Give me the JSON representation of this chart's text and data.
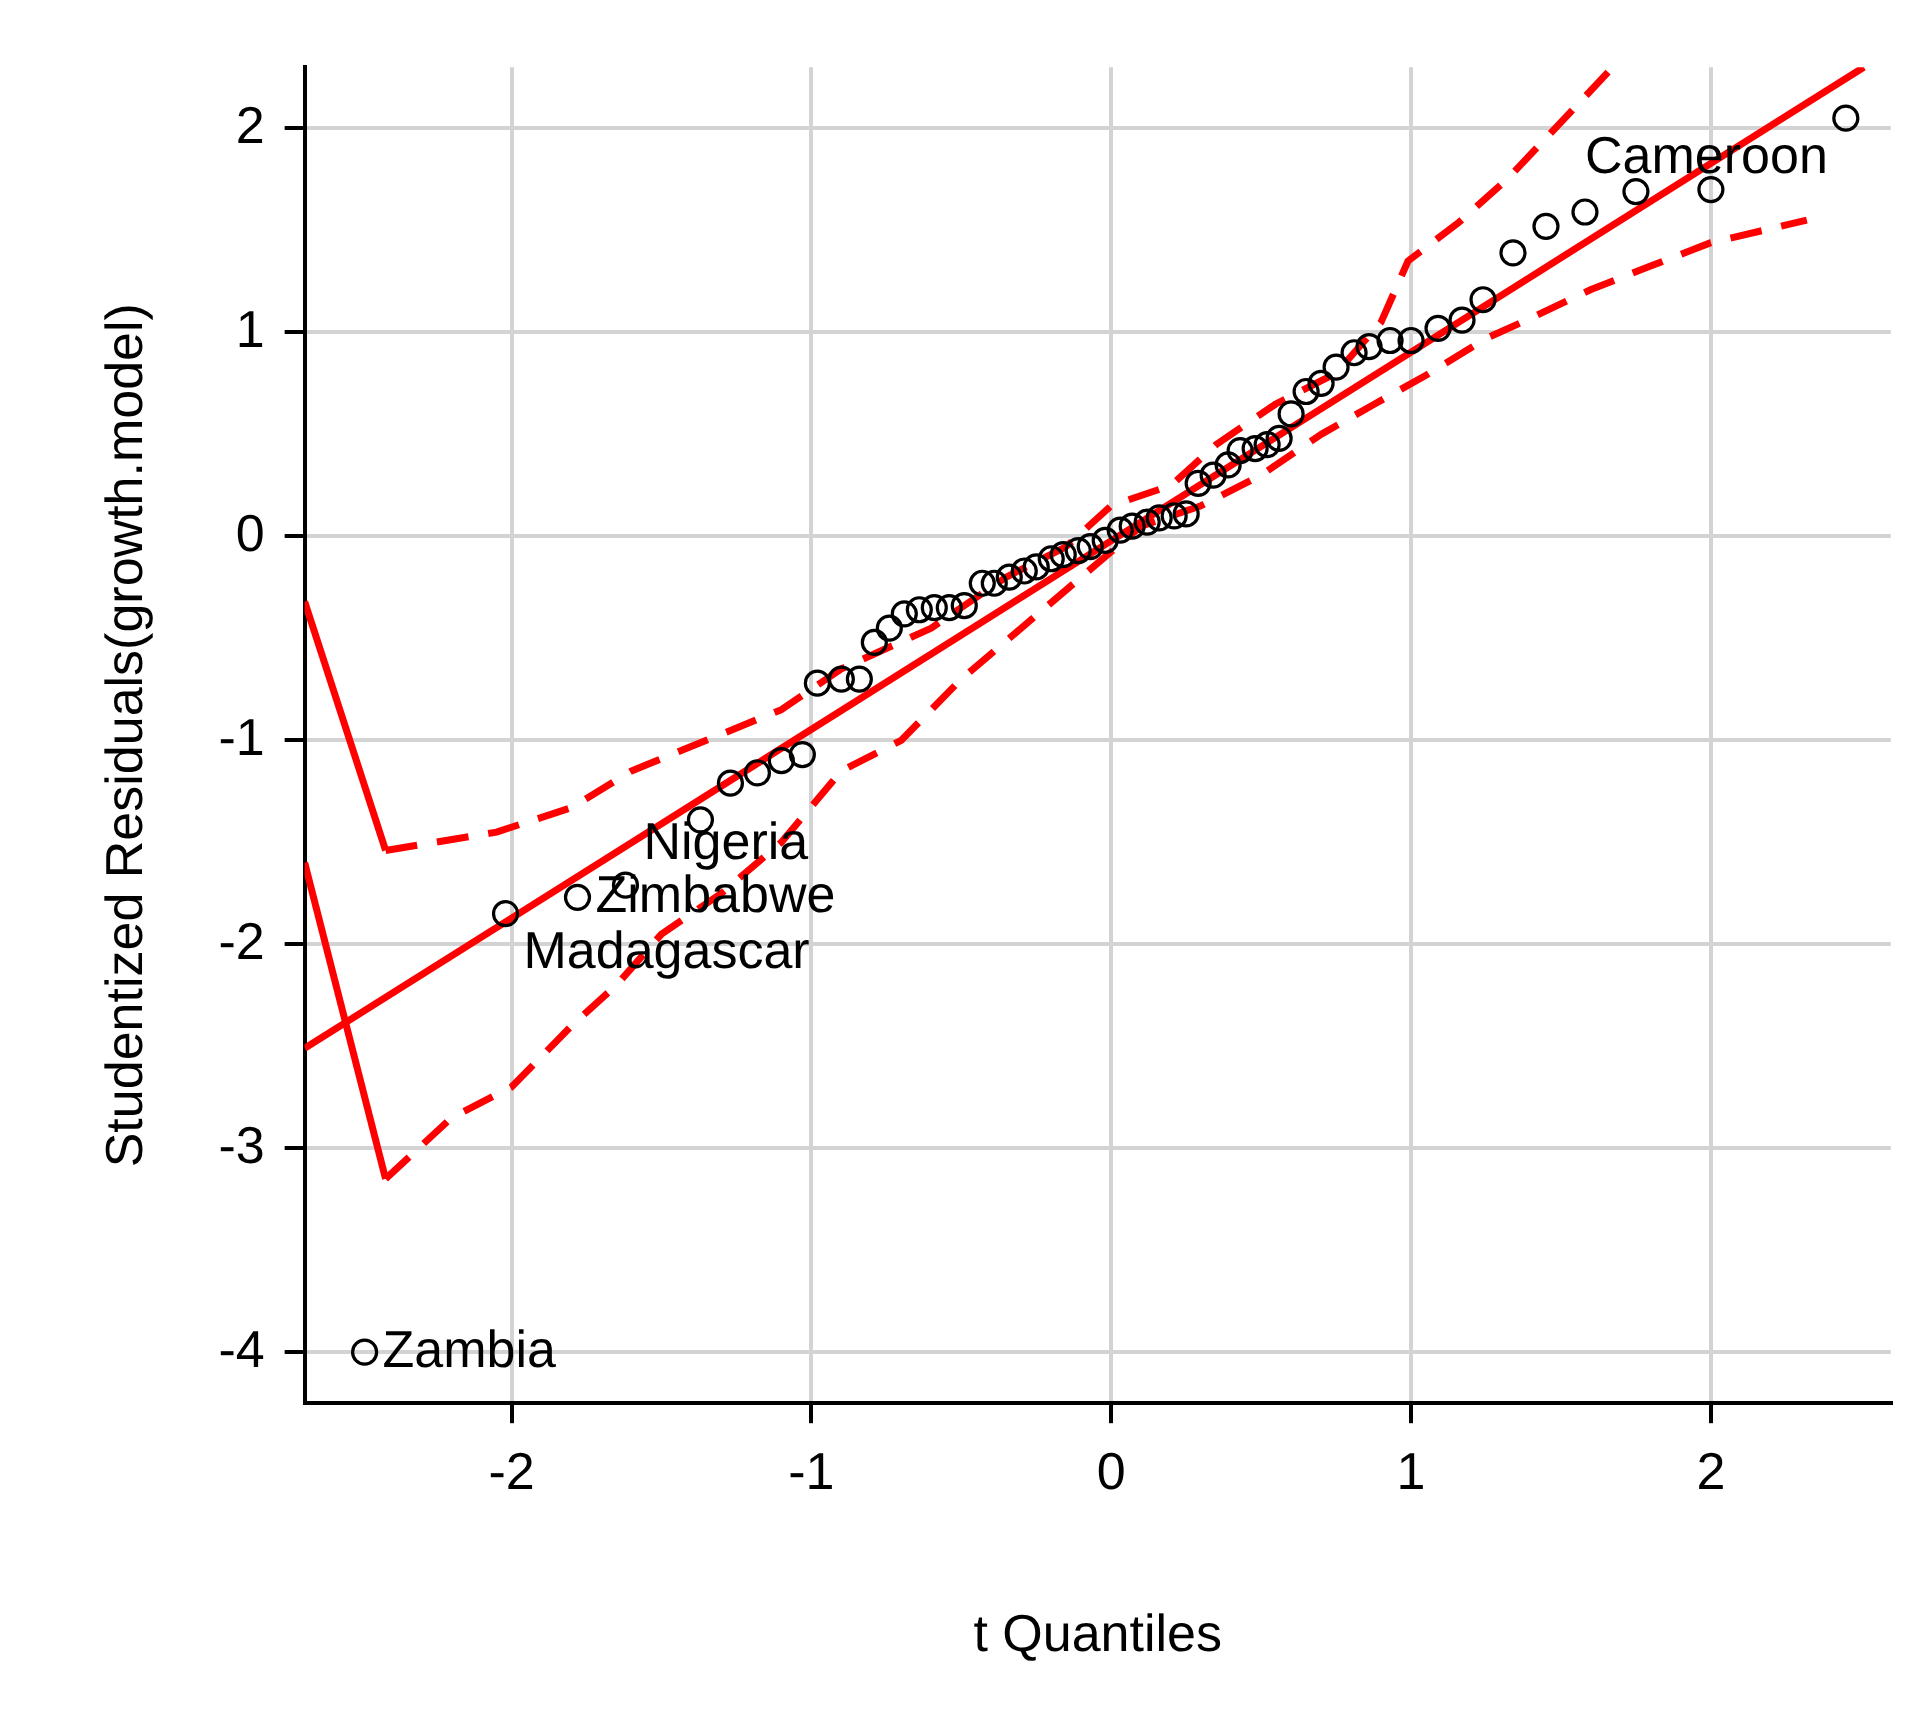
{
  "chart_data": {
    "type": "scatter",
    "xlabel": "t Quantiles",
    "ylabel": "Studentized Residuals(growth.model)",
    "xlim": [
      -2.69,
      2.6
    ],
    "xticks": [
      -2,
      -1,
      0,
      1,
      2
    ],
    "ylim": [
      -4.25,
      2.3
    ],
    "yticks": [
      -4,
      -3,
      -2,
      -1,
      0,
      1,
      2
    ],
    "grid": true,
    "series": [
      {
        "type": "scatter",
        "color": "#000000",
        "marker": "circle",
        "x": [
          -2.49,
          -2.02,
          -1.78,
          -1.62,
          -1.37,
          -1.27,
          -1.18,
          -1.1,
          -1.03,
          -0.98,
          -0.9,
          -0.84,
          -0.79,
          -0.74,
          -0.69,
          -0.64,
          -0.59,
          -0.54,
          -0.49,
          -0.43,
          -0.39,
          -0.34,
          -0.29,
          -0.25,
          -0.2,
          -0.16,
          -0.11,
          -0.07,
          -0.02,
          0.03,
          0.07,
          0.12,
          0.16,
          0.21,
          0.25,
          0.29,
          0.34,
          0.39,
          0.43,
          0.48,
          0.52,
          0.56,
          0.6,
          0.65,
          0.7,
          0.75,
          0.81,
          0.86,
          0.93,
          1.0,
          1.09,
          1.17,
          1.24,
          1.34,
          1.45,
          1.58,
          1.75,
          2.0,
          2.45
        ],
        "values": [
          -4.0,
          -1.85,
          -1.77,
          -1.71,
          -1.39,
          -1.21,
          -1.16,
          -1.1,
          -1.07,
          -0.72,
          -0.7,
          -0.7,
          -0.52,
          -0.45,
          -0.38,
          -0.36,
          -0.35,
          -0.35,
          -0.34,
          -0.23,
          -0.23,
          -0.2,
          -0.17,
          -0.15,
          -0.11,
          -0.09,
          -0.07,
          -0.05,
          -0.02,
          0.03,
          0.05,
          0.07,
          0.09,
          0.1,
          0.11,
          0.26,
          0.3,
          0.35,
          0.42,
          0.43,
          0.45,
          0.48,
          0.6,
          0.71,
          0.75,
          0.83,
          0.9,
          0.93,
          0.96,
          0.96,
          1.02,
          1.06,
          1.16,
          1.39,
          1.52,
          1.59,
          1.69,
          1.7,
          2.05
        ]
      },
      {
        "type": "line",
        "color": "#ff0000",
        "line_style": "solid",
        "x": [
          -2.69,
          2.51
        ],
        "values": [
          -2.51,
          2.3
        ]
      },
      {
        "type": "line",
        "color": "#ff0000",
        "line_style": "dashed",
        "x": [
          -2.42,
          -2.05,
          -1.8,
          -1.6,
          -1.35,
          -1.1,
          -0.9,
          -0.6,
          -0.35,
          -0.15,
          0.0,
          0.2,
          0.35,
          0.55,
          0.75,
          0.9,
          0.99,
          1.16,
          1.32,
          1.66
        ],
        "values": [
          -1.54,
          -1.45,
          -1.33,
          -1.15,
          -1.0,
          -0.85,
          -0.65,
          -0.45,
          -0.2,
          -0.05,
          0.15,
          0.25,
          0.45,
          0.65,
          0.8,
          1.05,
          1.35,
          1.54,
          1.75,
          2.28
        ]
      },
      {
        "type": "line",
        "color": "#ff0000",
        "line_style": "dashed",
        "x": [
          -2.42,
          -2.2,
          -2.0,
          -1.8,
          -1.65,
          -1.5,
          -1.3,
          -1.1,
          -0.9,
          -0.7,
          -0.5,
          -0.3,
          -0.1,
          0.1,
          0.3,
          0.5,
          0.7,
          0.88,
          1.05,
          1.25,
          1.4,
          1.6,
          1.79,
          2.0,
          2.32
        ],
        "values": [
          -3.15,
          -2.85,
          -2.7,
          -2.4,
          -2.2,
          -1.95,
          -1.75,
          -1.5,
          -1.15,
          -1.0,
          -0.7,
          -0.45,
          -0.2,
          0.05,
          0.15,
          0.3,
          0.5,
          0.65,
          0.79,
          0.97,
          1.07,
          1.21,
          1.32,
          1.44,
          1.55
        ]
      },
      {
        "type": "line",
        "color": "#ff0000",
        "line_style": "solid",
        "x": [
          -2.69,
          -2.42
        ],
        "values": [
          -0.32,
          -1.54
        ]
      },
      {
        "type": "line",
        "color": "#ff0000",
        "line_style": "solid",
        "x": [
          -2.69,
          -2.42
        ],
        "values": [
          -1.6,
          -3.15
        ]
      }
    ],
    "annotations": [
      {
        "text": "Cameroon",
        "x": 2.45,
        "y": 2.05
      },
      {
        "text": "Zambia",
        "x": -2.49,
        "y": -4.0
      },
      {
        "text": "Madagascar",
        "x": -2.02,
        "y": -1.85
      },
      {
        "text": "Zimbabwe",
        "x": -1.78,
        "y": -1.77
      },
      {
        "text": "Nigeria",
        "x": -1.62,
        "y": -1.71
      }
    ]
  }
}
